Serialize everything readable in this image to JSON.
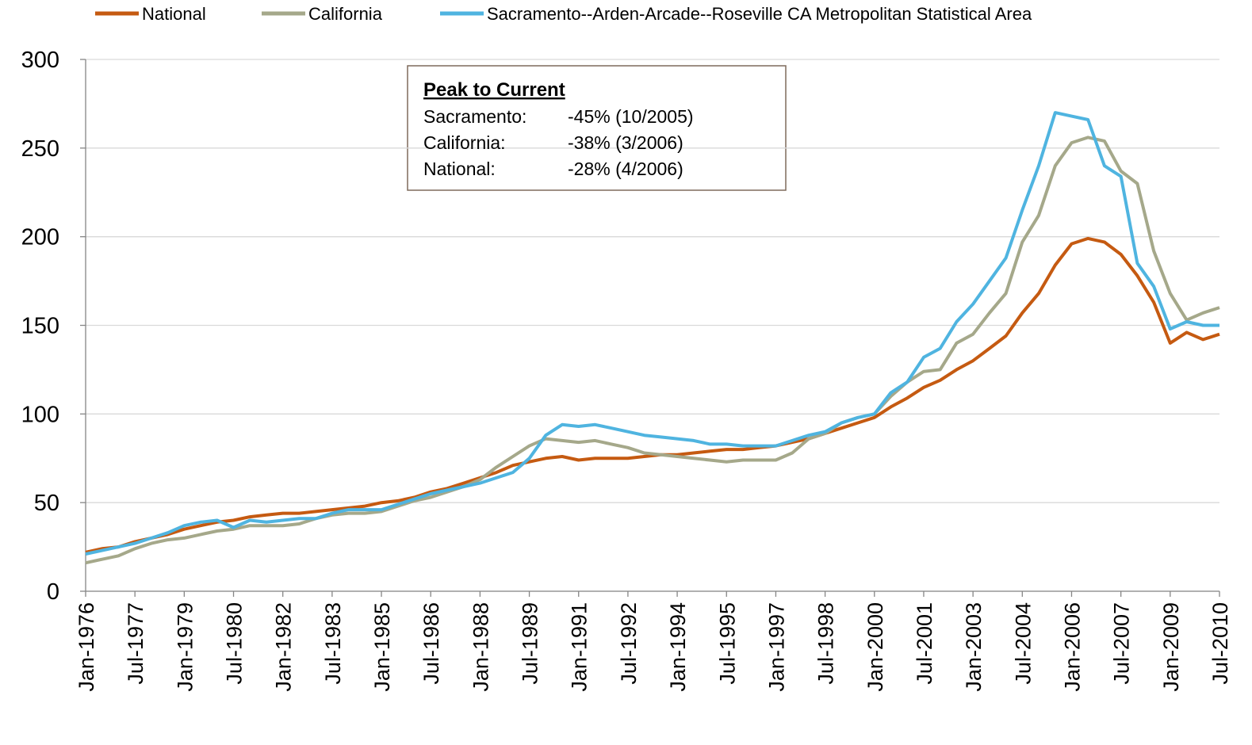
{
  "chart_data": {
    "type": "line",
    "categories": [
      "Jan-1976",
      null,
      null,
      "Jul-1977",
      null,
      null,
      "Jan-1979",
      null,
      null,
      "Jul-1980",
      null,
      null,
      "Jan-1982",
      null,
      null,
      "Jul-1983",
      null,
      null,
      "Jan-1985",
      null,
      null,
      "Jul-1986",
      null,
      null,
      "Jan-1988",
      null,
      null,
      "Jul-1989",
      null,
      null,
      "Jan-1991",
      null,
      null,
      "Jul-1992",
      null,
      null,
      "Jan-1994",
      null,
      null,
      "Jul-1995",
      null,
      null,
      "Jan-1997",
      null,
      null,
      "Jul-1998",
      null,
      null,
      "Jan-2000",
      null,
      null,
      "Jul-2001",
      null,
      null,
      "Jan-2003",
      null,
      null,
      "Jul-2004",
      null,
      null,
      "Jan-2006",
      null,
      null,
      "Jul-2007",
      null,
      null,
      "Jan-2009",
      null,
      null,
      "Jul-2010"
    ],
    "series": [
      {
        "name": "National",
        "color": "#c55a11",
        "values": [
          22,
          24,
          25,
          28,
          30,
          32,
          35,
          37,
          39,
          40,
          42,
          43,
          44,
          44,
          45,
          46,
          47,
          48,
          50,
          51,
          53,
          56,
          58,
          61,
          64,
          67,
          71,
          73,
          75,
          76,
          74,
          75,
          75,
          75,
          76,
          77,
          77,
          78,
          79,
          80,
          80,
          81,
          82,
          84,
          86,
          89,
          92,
          95,
          98,
          104,
          109,
          115,
          119,
          125,
          130,
          137,
          144,
          157,
          168,
          184,
          196,
          199,
          197,
          190,
          178,
          163,
          140,
          146,
          142,
          145
        ]
      },
      {
        "name": "California",
        "color": "#a5a88a",
        "values": [
          16,
          18,
          20,
          24,
          27,
          29,
          30,
          32,
          34,
          35,
          37,
          37,
          37,
          38,
          41,
          43,
          44,
          44,
          45,
          48,
          51,
          53,
          56,
          59,
          63,
          70,
          76,
          82,
          86,
          85,
          84,
          85,
          83,
          81,
          78,
          77,
          76,
          75,
          74,
          73,
          74,
          74,
          74,
          78,
          86,
          89,
          95,
          98,
          100,
          110,
          118,
          124,
          125,
          140,
          145,
          157,
          168,
          197,
          212,
          240,
          253,
          256,
          254,
          237,
          230,
          192,
          168,
          153,
          157,
          160
        ]
      },
      {
        "name": "Sacramento--Arden-Arcade--Roseville CA Metropolitan Statistical Area",
        "color": "#4fb4e0",
        "values": [
          21,
          23,
          25,
          27,
          30,
          33,
          37,
          39,
          40,
          36,
          40,
          39,
          40,
          41,
          41,
          44,
          46,
          46,
          46,
          49,
          52,
          55,
          57,
          59,
          61,
          64,
          67,
          75,
          88,
          94,
          93,
          94,
          92,
          90,
          88,
          87,
          86,
          85,
          83,
          83,
          82,
          82,
          82,
          85,
          88,
          90,
          95,
          98,
          100,
          112,
          118,
          132,
          137,
          152,
          162,
          175,
          188,
          215,
          240,
          270,
          268,
          266,
          240,
          234,
          185,
          172,
          148,
          152,
          150,
          150
        ]
      }
    ],
    "ylim": [
      0,
      300
    ],
    "yticks": [
      0,
      50,
      100,
      150,
      200,
      250,
      300
    ],
    "grid": true,
    "annotation": {
      "title": "Peak to Current",
      "rows": [
        {
          "label": "Sacramento:",
          "value": "-45% (10/2005)"
        },
        {
          "label": "California:",
          "value": "-38% (3/2006)"
        },
        {
          "label": "National:",
          "value": "-28% (4/2006)"
        }
      ]
    }
  }
}
